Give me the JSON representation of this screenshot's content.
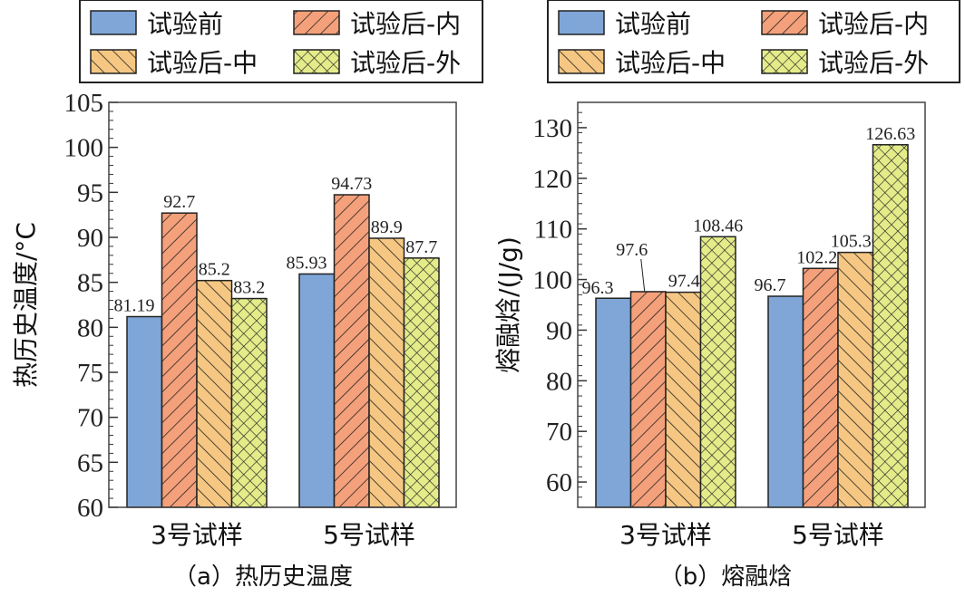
{
  "legend": [
    "试验前",
    "试验后-内",
    "试验后-中",
    "试验后-外"
  ],
  "colors": {
    "before": "#7fa6d6",
    "inner": "#f4a07a",
    "middle": "#f5c783",
    "outer": "#e4ec8a"
  },
  "chart_data": [
    {
      "type": "bar",
      "caption": "（a）热历史温度",
      "ylabel": "热历史温度/°C",
      "ylim": [
        60,
        105
      ],
      "yticks": [
        60,
        65,
        70,
        75,
        80,
        85,
        90,
        95,
        100,
        105
      ],
      "categories": [
        "3号试样",
        "5号试样"
      ],
      "series": [
        {
          "name": "试验前",
          "values": [
            81.19,
            85.93
          ],
          "labels": [
            "81.19",
            "85.93"
          ]
        },
        {
          "name": "试验后-内",
          "values": [
            92.7,
            94.73
          ],
          "labels": [
            "92.7",
            "94.73"
          ]
        },
        {
          "name": "试验后-中",
          "values": [
            85.2,
            89.9
          ],
          "labels": [
            "85.2",
            "89.9"
          ]
        },
        {
          "name": "试验后-外",
          "values": [
            83.2,
            87.7
          ],
          "labels": [
            "83.2",
            "87.7"
          ]
        }
      ],
      "legend_position": "top"
    },
    {
      "type": "bar",
      "caption": "（b）熔融焓",
      "ylabel": "熔融焓/(J/g)",
      "ylim": [
        55,
        135
      ],
      "yticks": [
        60,
        70,
        80,
        90,
        100,
        110,
        120,
        130
      ],
      "categories": [
        "3号试样",
        "5号试样"
      ],
      "series": [
        {
          "name": "试验前",
          "values": [
            96.3,
            96.7
          ],
          "labels": [
            "96.3",
            "96.7"
          ]
        },
        {
          "name": "试验后-内",
          "values": [
            97.6,
            102.2
          ],
          "labels": [
            "97.6",
            "102.2"
          ]
        },
        {
          "name": "试验后-中",
          "values": [
            97.49,
            105.36
          ],
          "labels": [
            "97.49",
            "105.36"
          ]
        },
        {
          "name": "试验后-外",
          "values": [
            108.46,
            126.63
          ],
          "labels": [
            "108.46",
            "126.63"
          ]
        }
      ],
      "legend_position": "top"
    }
  ]
}
